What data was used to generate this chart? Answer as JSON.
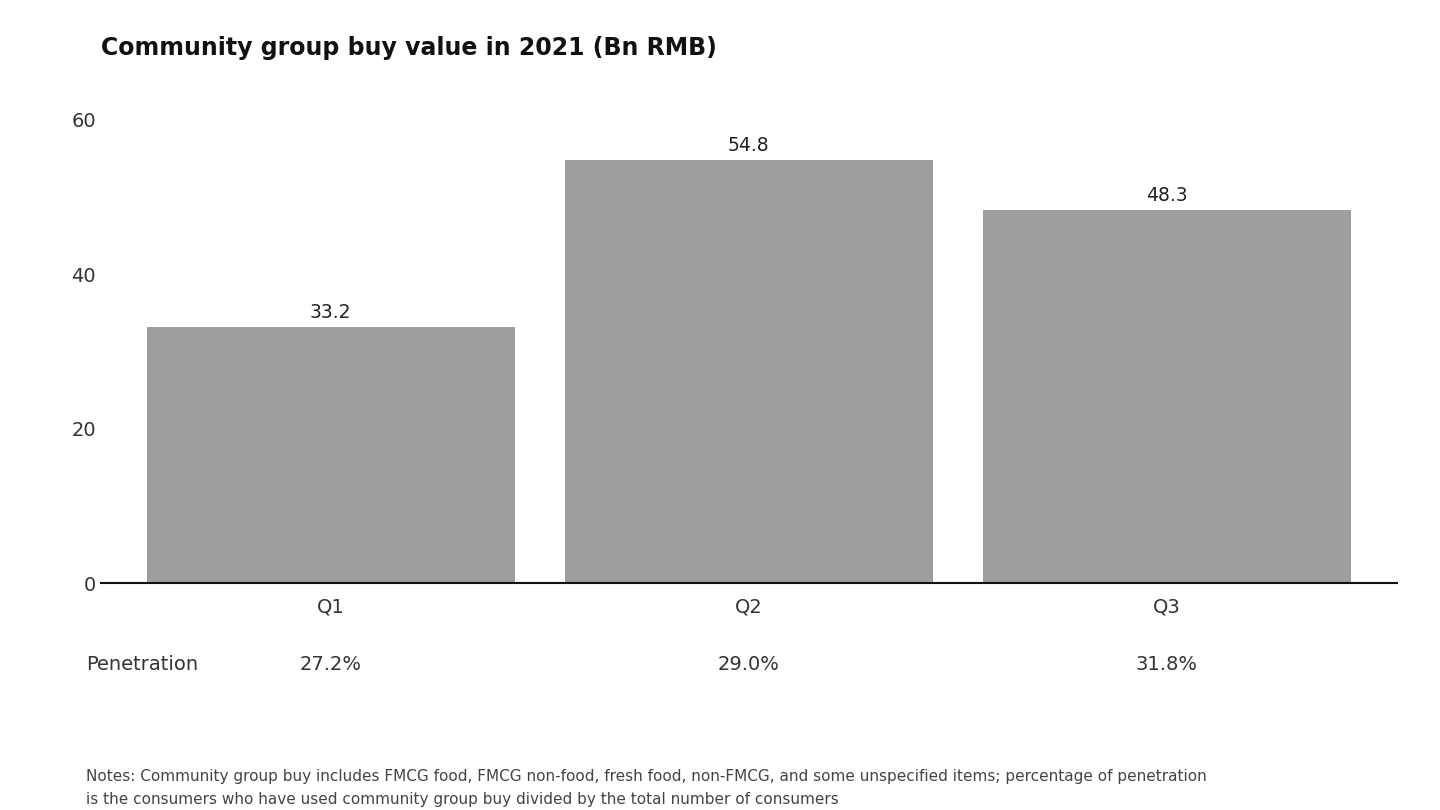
{
  "title": "Community group buy value in 2021 (Bn RMB)",
  "categories": [
    "Q1",
    "Q2",
    "Q3"
  ],
  "values": [
    33.2,
    54.8,
    48.3
  ],
  "bar_color": "#9E9E9E",
  "penetration_label": "Penetration",
  "penetration_values": [
    "27.2%",
    "29.0%",
    "31.8%"
  ],
  "yticks": [
    0,
    20,
    40,
    60
  ],
  "ylim": [
    0,
    65
  ],
  "background_color": "#ffffff",
  "title_fontsize": 17,
  "tick_fontsize": 14,
  "penetration_fontsize": 14,
  "note_text": "Notes: Community group buy includes FMCG food, FMCG non-food, fresh food, non-FMCG, and some unspecified items; percentage of penetration\nis the consumers who have used community group buy divided by the total number of consumers\nSources: Kantar Worldpanel; Bain analysis",
  "note_fontsize": 11,
  "value_label_fontsize": 13.5,
  "bar_width": 0.88
}
